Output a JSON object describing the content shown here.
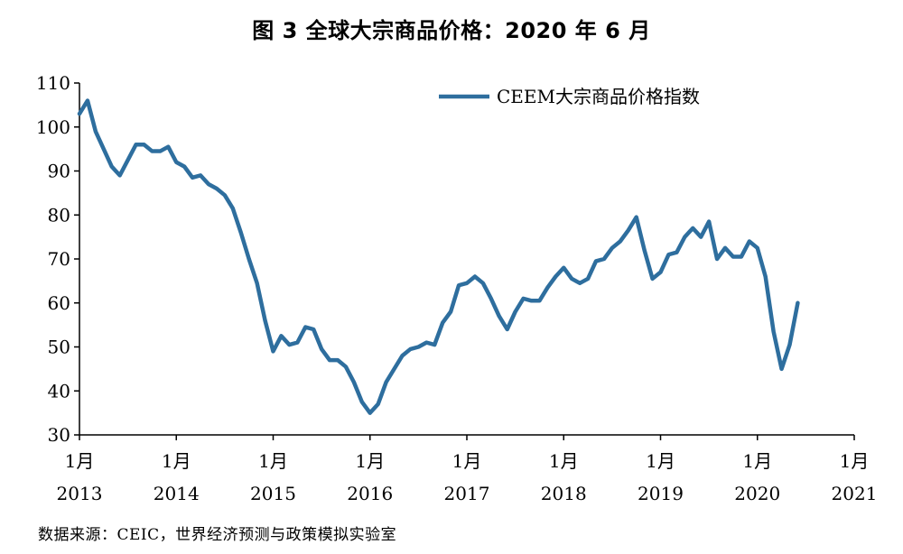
{
  "page": {
    "title": "图 3 全球大宗商品价格：2020 年 6 月",
    "source": "数据来源：CEIC，世界经济预测与政策模拟实验室"
  },
  "chart_data": {
    "type": "line",
    "title": "图 3 全球大宗商品价格：2020 年 6 月",
    "xlabel": "",
    "ylabel": "",
    "ylim": [
      30,
      110
    ],
    "yticks": [
      30,
      40,
      50,
      60,
      70,
      80,
      90,
      100,
      110
    ],
    "xlim": [
      "2013-01",
      "2021-01"
    ],
    "xticks": [
      {
        "month": "1月",
        "year": "2013"
      },
      {
        "month": "1月",
        "year": "2014"
      },
      {
        "month": "1月",
        "year": "2015"
      },
      {
        "month": "1月",
        "year": "2016"
      },
      {
        "month": "1月",
        "year": "2017"
      },
      {
        "month": "1月",
        "year": "2018"
      },
      {
        "month": "1月",
        "year": "2019"
      },
      {
        "month": "1月",
        "year": "2020"
      },
      {
        "month": "1月",
        "year": "2021"
      }
    ],
    "grid": false,
    "legend": "top-center",
    "series": [
      {
        "name": "CEEM大宗商品价格指数",
        "color": "#2e6e9e",
        "start": "2013-01",
        "frequency": "monthly",
        "values": [
          103,
          106,
          99,
          95,
          91,
          89,
          92.5,
          96,
          96,
          94.5,
          94.5,
          95.5,
          92,
          91,
          88.5,
          89,
          87,
          86,
          84.5,
          81.5,
          76,
          70,
          64.5,
          56,
          49,
          52.5,
          50.5,
          51,
          54.5,
          54,
          49.5,
          47,
          47,
          45.5,
          42,
          37.5,
          35,
          37,
          42,
          45,
          48,
          49.5,
          50,
          51,
          50.5,
          55.5,
          58,
          64,
          64.5,
          66,
          64.5,
          61,
          57,
          54,
          58,
          61,
          60.5,
          60.5,
          63.5,
          66,
          68,
          65.5,
          64.5,
          65.5,
          69.5,
          70,
          72.5,
          74,
          76.5,
          79.5,
          72,
          65.5,
          67,
          71,
          71.5,
          75,
          77,
          75,
          78.5,
          70,
          72.5,
          70.5,
          70.5,
          74,
          72.5,
          66,
          53.5,
          45,
          50.5,
          60
        ]
      }
    ]
  }
}
